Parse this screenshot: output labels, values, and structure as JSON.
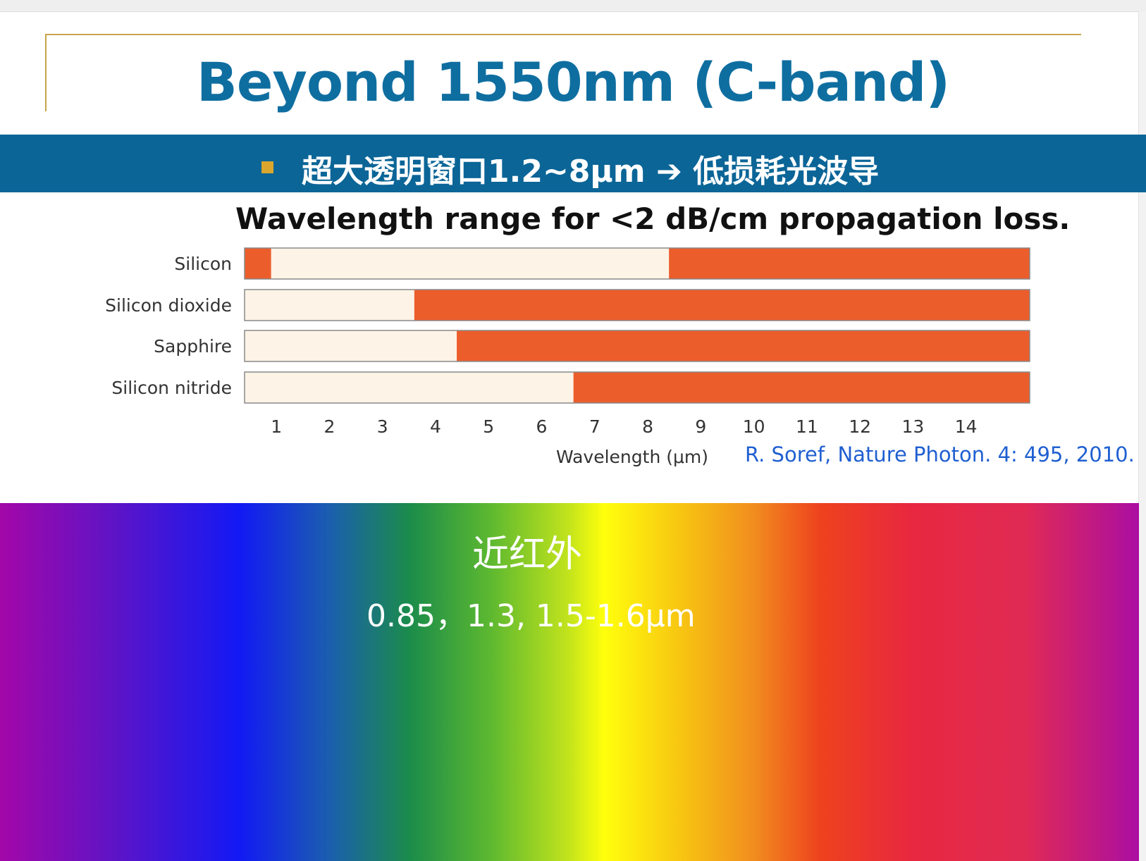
{
  "slide": {
    "title": "Beyond 1550nm (C-band)",
    "banner_text": "超大透明窗口1.2~8μm ➔ 低损耗光波导",
    "citation": "R. Soref, Nature Photon. 4: 495, 2010."
  },
  "spectrum": {
    "label": "近红外",
    "values": "0.85，1.3, 1.5-1.6μm"
  },
  "colors": {
    "title": "#0f6ea0",
    "banner": "#0b6597",
    "bullet": "#d9a62e",
    "low_loss": "#fdf3e6",
    "high_loss": "#ec5d2c",
    "citation": "#1f5fd1"
  },
  "chart_data": {
    "type": "bar",
    "title": "Wavelength range for <2 dB/cm propagation loss.",
    "xlabel": "Wavelength (μm)",
    "ylabel": "",
    "xlim": [
      0.4,
      15.2
    ],
    "xticks": [
      1,
      2,
      3,
      4,
      5,
      6,
      7,
      8,
      9,
      10,
      11,
      12,
      13,
      14
    ],
    "categories": [
      "Silicon",
      "Silicon dioxide",
      "Sapphire",
      "Silicon nitride"
    ],
    "ranges": [
      {
        "material": "Silicon",
        "low_loss_from": 0.9,
        "low_loss_to": 8.4
      },
      {
        "material": "Silicon dioxide",
        "low_loss_from": 0.4,
        "low_loss_to": 3.6
      },
      {
        "material": "Sapphire",
        "low_loss_from": 0.4,
        "low_loss_to": 4.4
      },
      {
        "material": "Silicon nitride",
        "low_loss_from": 0.4,
        "low_loss_to": 6.6
      }
    ]
  }
}
